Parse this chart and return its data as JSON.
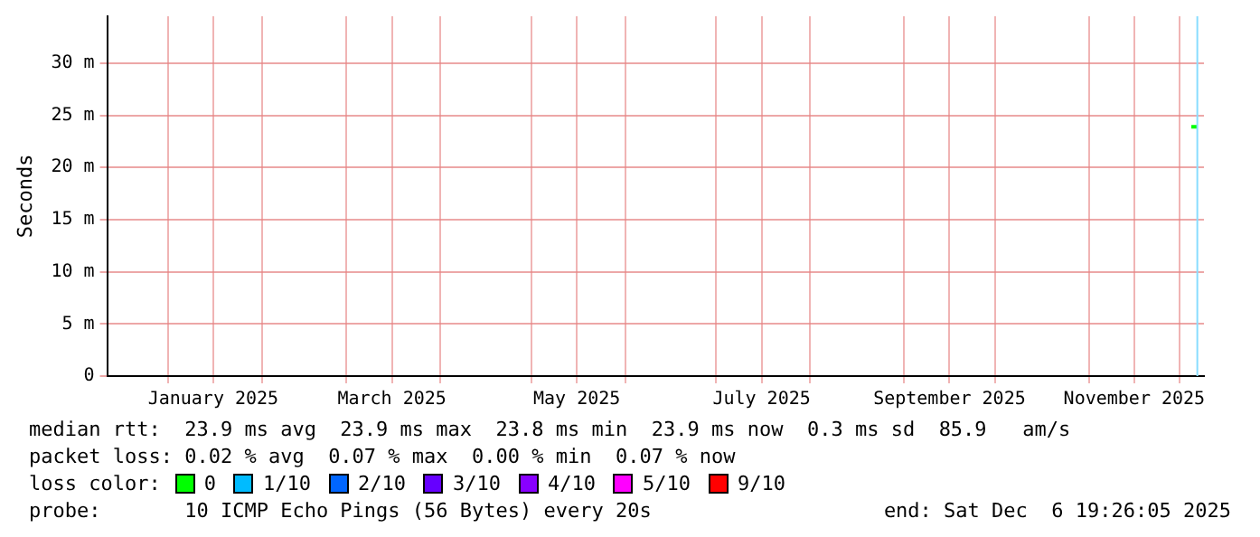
{
  "chart_data": {
    "type": "line",
    "ylabel": "Seconds",
    "xlim": [
      "2024-12-12",
      "2025-12-09"
    ],
    "xticks": [
      {
        "value": "2025-01-01",
        "label": null
      },
      {
        "value": "2025-01-16",
        "label": "January 2025"
      },
      {
        "value": "2025-02-01",
        "label": null
      },
      {
        "value": "2025-03-01",
        "label": null
      },
      {
        "value": "2025-03-16",
        "label": "March 2025"
      },
      {
        "value": "2025-04-01",
        "label": null
      },
      {
        "value": "2025-05-01",
        "label": null
      },
      {
        "value": "2025-05-16",
        "label": "May 2025"
      },
      {
        "value": "2025-06-01",
        "label": null
      },
      {
        "value": "2025-07-01",
        "label": null
      },
      {
        "value": "2025-07-16",
        "label": "July 2025"
      },
      {
        "value": "2025-08-01",
        "label": null
      },
      {
        "value": "2025-09-01",
        "label": null
      },
      {
        "value": "2025-09-16",
        "label": "September 2025"
      },
      {
        "value": "2025-10-01",
        "label": null
      },
      {
        "value": "2025-11-01",
        "label": null
      },
      {
        "value": "2025-11-16",
        "label": "November 2025"
      },
      {
        "value": "2025-12-01",
        "label": null
      }
    ],
    "ylim": [
      0,
      34.5
    ],
    "yticks": [
      0,
      {
        "value": 5,
        "label": "5 m"
      },
      {
        "value": 10,
        "label": "10 m"
      },
      {
        "value": 15,
        "label": "15 m"
      },
      {
        "value": 20,
        "label": "20 m"
      },
      {
        "value": 25,
        "label": "25 m"
      },
      {
        "value": 30,
        "label": "30 m"
      }
    ],
    "grid": true,
    "legend": "bottom",
    "legend_title": "loss color:",
    "series": [
      {
        "name": "0",
        "color": "#00ff00",
        "x": [
          "2025-12-04T20:00",
          "2025-12-06T19:26"
        ],
        "values": [
          23.9,
          23.9
        ]
      },
      {
        "name": "1/10",
        "color": "#00bbff"
      },
      {
        "name": "2/10",
        "color": "#0066ff"
      },
      {
        "name": "3/10",
        "color": "#6600ff"
      },
      {
        "name": "4/10",
        "color": "#8800ff"
      },
      {
        "name": "5/10",
        "color": "#ff00ff"
      },
      {
        "name": "9/10",
        "color": "#ff0000"
      }
    ],
    "ref_lines": [
      {
        "axis": "x",
        "value": "2025-12-06T19:26",
        "color": "#88ddff"
      }
    ],
    "annotations": [
      "median rtt:  23.9 ms avg  23.9 ms max  23.8 ms min  23.9 ms now  0.3 ms sd  85.9   am/s",
      "packet loss: 0.02 % avg  0.07 % max  0.00 % min  0.07 % now",
      "probe:       10 ICMP Echo Pings (56 Bytes) every 20s",
      "end: Sat Dec  6 19:26:05 2025"
    ]
  }
}
